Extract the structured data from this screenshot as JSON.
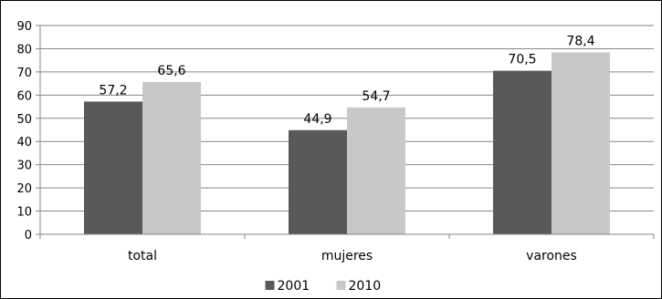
{
  "chart_data": {
    "type": "bar",
    "categories": [
      "total",
      "mujeres",
      "varones"
    ],
    "series": [
      {
        "name": "2001",
        "values": [
          57.2,
          44.9,
          70.5
        ],
        "labels": [
          "57,2",
          "44,9",
          "70,5"
        ],
        "color": "#595959"
      },
      {
        "name": "2010",
        "values": [
          65.6,
          54.7,
          78.4
        ],
        "labels": [
          "65,6",
          "54,7",
          "78,4"
        ],
        "color": "#c8c8c8"
      }
    ],
    "yticks": [
      "0",
      "10",
      "20",
      "30",
      "40",
      "50",
      "60",
      "70",
      "80",
      "90"
    ],
    "ylim": [
      0,
      90
    ],
    "grid": true,
    "legend_position": "bottom",
    "title": "",
    "xlabel": "",
    "ylabel": ""
  }
}
